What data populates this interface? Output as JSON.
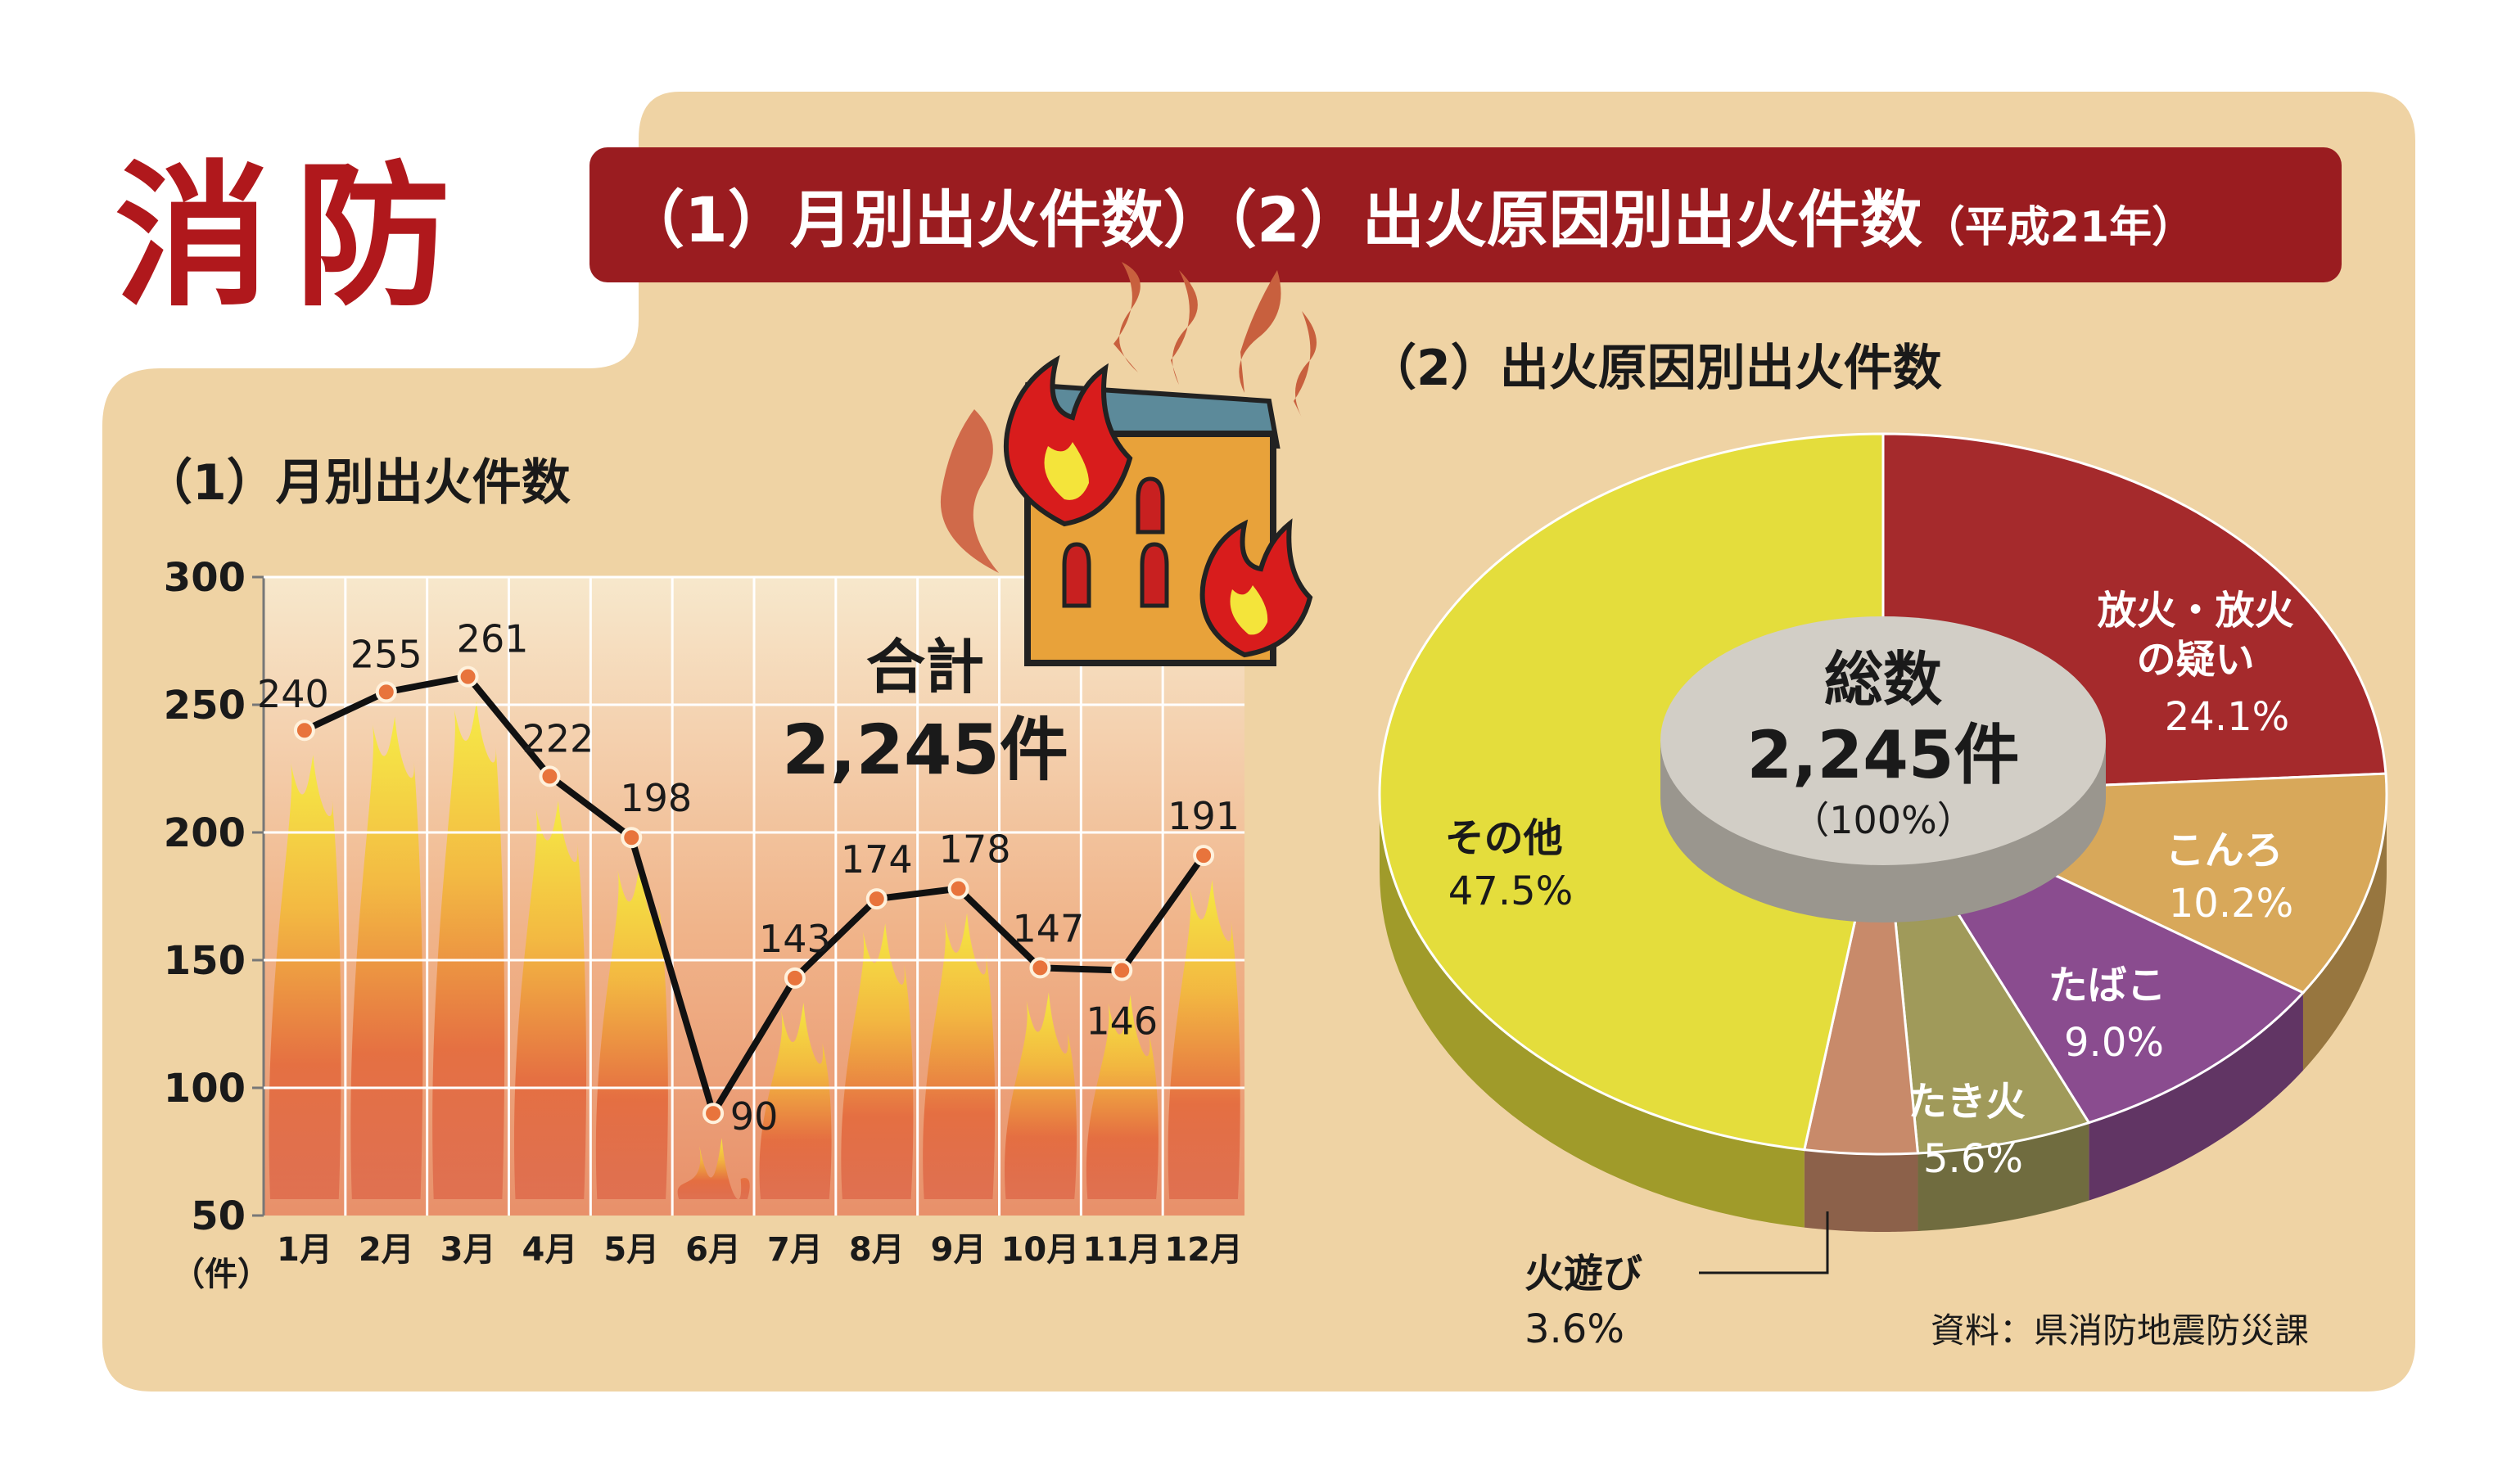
{
  "header": {
    "logo_text": "消防",
    "banner": {
      "part1": "（1）月別出火件数）",
      "part2": "（2）出火原因別出火件数",
      "part3": "（平成21年）"
    }
  },
  "colors": {
    "accent_red": "#9a1c20",
    "panel": "#efd3a4",
    "line": "#111111",
    "marker": "#e8743c",
    "pie_arson": "#a52a2c",
    "pie_stove": "#d8a85a",
    "pie_tobacco": "#8a4c8f",
    "pie_bonfire": "#a09a5a",
    "pie_fireplay": "#c88a6a",
    "pie_other": "#e4dd3c",
    "center_disc": "#d2cec6"
  },
  "icons": {
    "house": "burning-house-icon"
  },
  "source": "資料：県消防地震防災課",
  "chart_data": [
    {
      "type": "line",
      "title": "（1）月別出火件数",
      "ylabel": "（件）",
      "ylim": [
        50,
        300
      ],
      "yticks": [
        50,
        100,
        150,
        200,
        250,
        300
      ],
      "grid": true,
      "categories": [
        "1月",
        "2月",
        "3月",
        "4月",
        "5月",
        "6月",
        "7月",
        "8月",
        "9月",
        "10月",
        "11月",
        "12月"
      ],
      "values": [
        240,
        255,
        261,
        222,
        198,
        90,
        143,
        174,
        178,
        147,
        146,
        191
      ],
      "annotation": {
        "label": "合計",
        "value": "2,245件"
      }
    },
    {
      "type": "pie",
      "title": "（2）出火原因別出火件数",
      "center": {
        "label": "総数",
        "value": "2,245件",
        "sub": "（100%）"
      },
      "slices": [
        {
          "name": "放火・放火の疑い",
          "value": 24.1,
          "label": "24.1%",
          "color": "#a52a2c"
        },
        {
          "name": "こんろ",
          "value": 10.2,
          "label": "10.2%",
          "color": "#d8a85a"
        },
        {
          "name": "たばこ",
          "value": 9.0,
          "label": "9.0%",
          "color": "#8a4c8f"
        },
        {
          "name": "たき火",
          "value": 5.6,
          "label": "5.6%",
          "color": "#a09a5a"
        },
        {
          "name": "火遊び",
          "value": 3.6,
          "label": "3.6%",
          "color": "#c88a6a"
        },
        {
          "name": "その他",
          "value": 47.5,
          "label": "47.5%",
          "color": "#e4dd3c"
        }
      ]
    }
  ]
}
